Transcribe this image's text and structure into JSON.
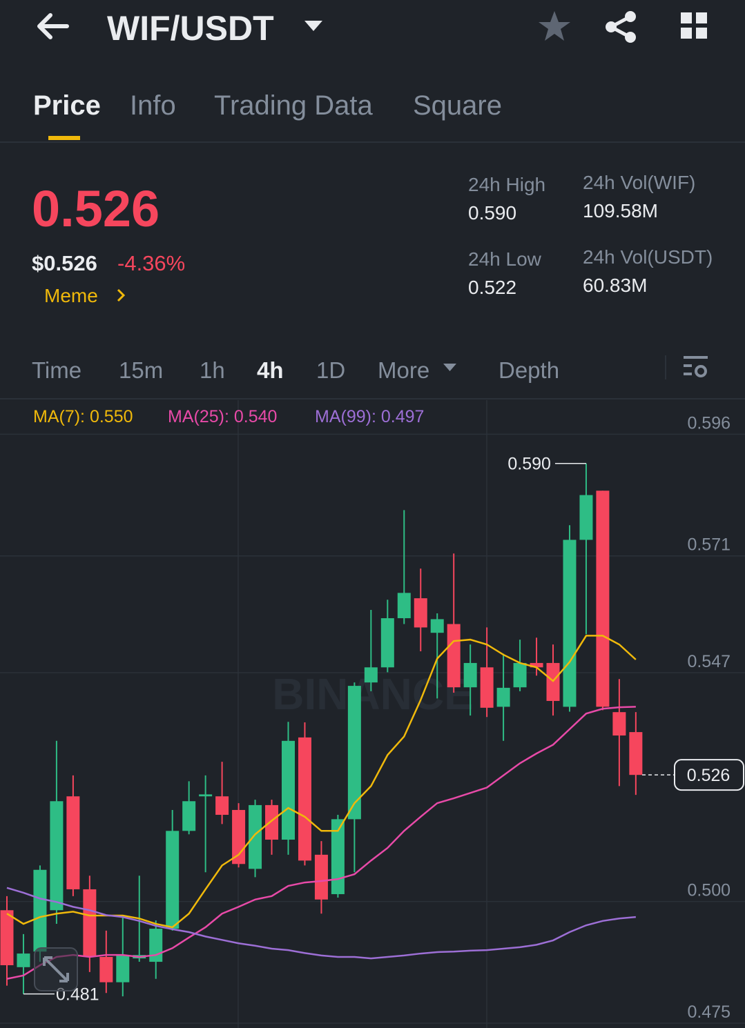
{
  "header": {
    "pair": "WIF/USDT"
  },
  "tabs": [
    "Price",
    "Info",
    "Trading Data",
    "Square"
  ],
  "ticker": {
    "price": "0.526",
    "usd_price": "$0.526",
    "change": "-4.36%",
    "tag": "Meme",
    "stats": [
      {
        "label": "24h High",
        "value": "0.590"
      },
      {
        "label": "24h Vol(WIF)",
        "value": "109.58M"
      },
      {
        "label": "24h Low",
        "value": "0.522"
      },
      {
        "label": "24h Vol(USDT)",
        "value": "60.83M"
      }
    ]
  },
  "intervals": [
    "Time",
    "15m",
    "1h",
    "4h",
    "1D",
    "More",
    "Depth"
  ],
  "chart_data": {
    "type": "candlestick",
    "watermark": "BINANCE",
    "open": [
      0.4982,
      0.4865,
      0.4897,
      0.4982,
      0.5216,
      0.5025,
      0.4886,
      0.4834,
      0.4883,
      0.4876,
      0.4944,
      0.5145,
      0.5216,
      0.5216,
      0.5188,
      0.5067,
      0.5198,
      0.5127,
      0.5337,
      0.5096,
      0.5015,
      0.5169,
      0.545,
      0.5481,
      0.5582,
      0.5623,
      0.5552,
      0.557,
      0.544,
      0.5481,
      0.54,
      0.544,
      0.549,
      0.549,
      0.54,
      0.5743,
      0.5844,
      0.5389,
      0.5348
    ],
    "high": [
      0.5011,
      0.4933,
      0.5074,
      0.533,
      0.5259,
      0.5053,
      0.494,
      0.4968,
      0.5053,
      0.4961,
      0.5188,
      0.5247,
      0.5259,
      0.5287,
      0.5202,
      0.5209,
      0.5209,
      0.5369,
      0.5368,
      0.5124,
      0.5178,
      0.545,
      0.5599,
      0.562,
      0.5804,
      0.5684,
      0.5592,
      0.5715,
      0.5528,
      0.5563,
      0.5509,
      0.5538,
      0.5542,
      0.5528,
      0.5773,
      0.59,
      0.5844,
      0.5457,
      0.5389
    ],
    "low": [
      0.4827,
      0.481,
      0.4876,
      0.4954,
      0.5011,
      0.4855,
      0.4812,
      0.4805,
      0.4876,
      0.4841,
      0.494,
      0.5138,
      0.506,
      0.5159,
      0.507,
      0.505,
      0.5096,
      0.5096,
      0.5074,
      0.4975,
      0.5008,
      0.506,
      0.5432,
      0.5471,
      0.557,
      0.5514,
      0.5417,
      0.5429,
      0.5382,
      0.5379,
      0.533,
      0.5432,
      0.5464,
      0.5382,
      0.539,
      0.5549,
      0.5393,
      0.5237,
      0.5219
    ],
    "close": [
      0.4869,
      0.4893,
      0.5065,
      0.5206,
      0.5025,
      0.4886,
      0.4834,
      0.489,
      0.489,
      0.4944,
      0.5145,
      0.5206,
      0.522,
      0.5178,
      0.5077,
      0.5198,
      0.5127,
      0.533,
      0.5084,
      0.5004,
      0.5169,
      0.5443,
      0.5481,
      0.5582,
      0.5634,
      0.5563,
      0.558,
      0.544,
      0.549,
      0.5398,
      0.5439,
      0.549,
      0.5481,
      0.5412,
      0.5743,
      0.5835,
      0.54,
      0.5341,
      0.526
    ],
    "up_color": "#2ebd85",
    "down_color": "#f6465d",
    "series": [
      {
        "name": "MA(7): 0.550",
        "color": "#f0b90b",
        "values": [
          0.4975,
          0.4954,
          0.4968,
          0.4975,
          0.4979,
          0.4971,
          0.4971,
          0.4971,
          0.4965,
          0.4954,
          0.4947,
          0.4975,
          0.5025,
          0.5074,
          0.5096,
          0.5138,
          0.5166,
          0.5192,
          0.5174,
          0.5145,
          0.5145,
          0.5202,
          0.5237,
          0.5301,
          0.5339,
          0.5414,
          0.5499,
          0.5535,
          0.5538,
          0.5528,
          0.5507,
          0.549,
          0.5481,
          0.5453,
          0.5492,
          0.5546,
          0.5546,
          0.5528,
          0.5497
        ]
      },
      {
        "name": "MA(25): 0.540",
        "color": "#e84aa8",
        "values": [
          0.4841,
          0.4848,
          0.4869,
          0.4886,
          0.489,
          0.4886,
          0.489,
          0.489,
          0.4886,
          0.489,
          0.4904,
          0.4926,
          0.4947,
          0.4975,
          0.4989,
          0.5004,
          0.5011,
          0.5032,
          0.5039,
          0.5042,
          0.5046,
          0.5056,
          0.5084,
          0.511,
          0.5145,
          0.5174,
          0.5202,
          0.5212,
          0.5223,
          0.5234,
          0.5259,
          0.5284,
          0.5304,
          0.5322,
          0.5354,
          0.5386,
          0.5396,
          0.5399,
          0.54
        ]
      },
      {
        "name": "MA(99): 0.497",
        "color": "#9d6fd6",
        "values": [
          0.5028,
          0.5018,
          0.5006,
          0.4999,
          0.4989,
          0.4982,
          0.4972,
          0.4968,
          0.496,
          0.495,
          0.4943,
          0.4937,
          0.4928,
          0.4921,
          0.4914,
          0.4909,
          0.4903,
          0.49,
          0.4894,
          0.4889,
          0.4886,
          0.4886,
          0.4883,
          0.4886,
          0.4889,
          0.4893,
          0.4896,
          0.4897,
          0.4899,
          0.49,
          0.4903,
          0.4906,
          0.4911,
          0.492,
          0.4937,
          0.4951,
          0.496,
          0.4965,
          0.4968
        ]
      }
    ],
    "ylim": [
      0.474,
      0.603
    ],
    "yticks": [
      0.596,
      0.571,
      0.547,
      {
        "value": 0.5,
        "label": "0.500"
      },
      0.475
    ],
    "grid": true,
    "annotations": [
      {
        "value": 0.59,
        "label": "0.590"
      },
      {
        "value": 0.481,
        "label": "0.481"
      }
    ],
    "last_price": {
      "value": 0.526,
      "label": "0.526"
    }
  }
}
